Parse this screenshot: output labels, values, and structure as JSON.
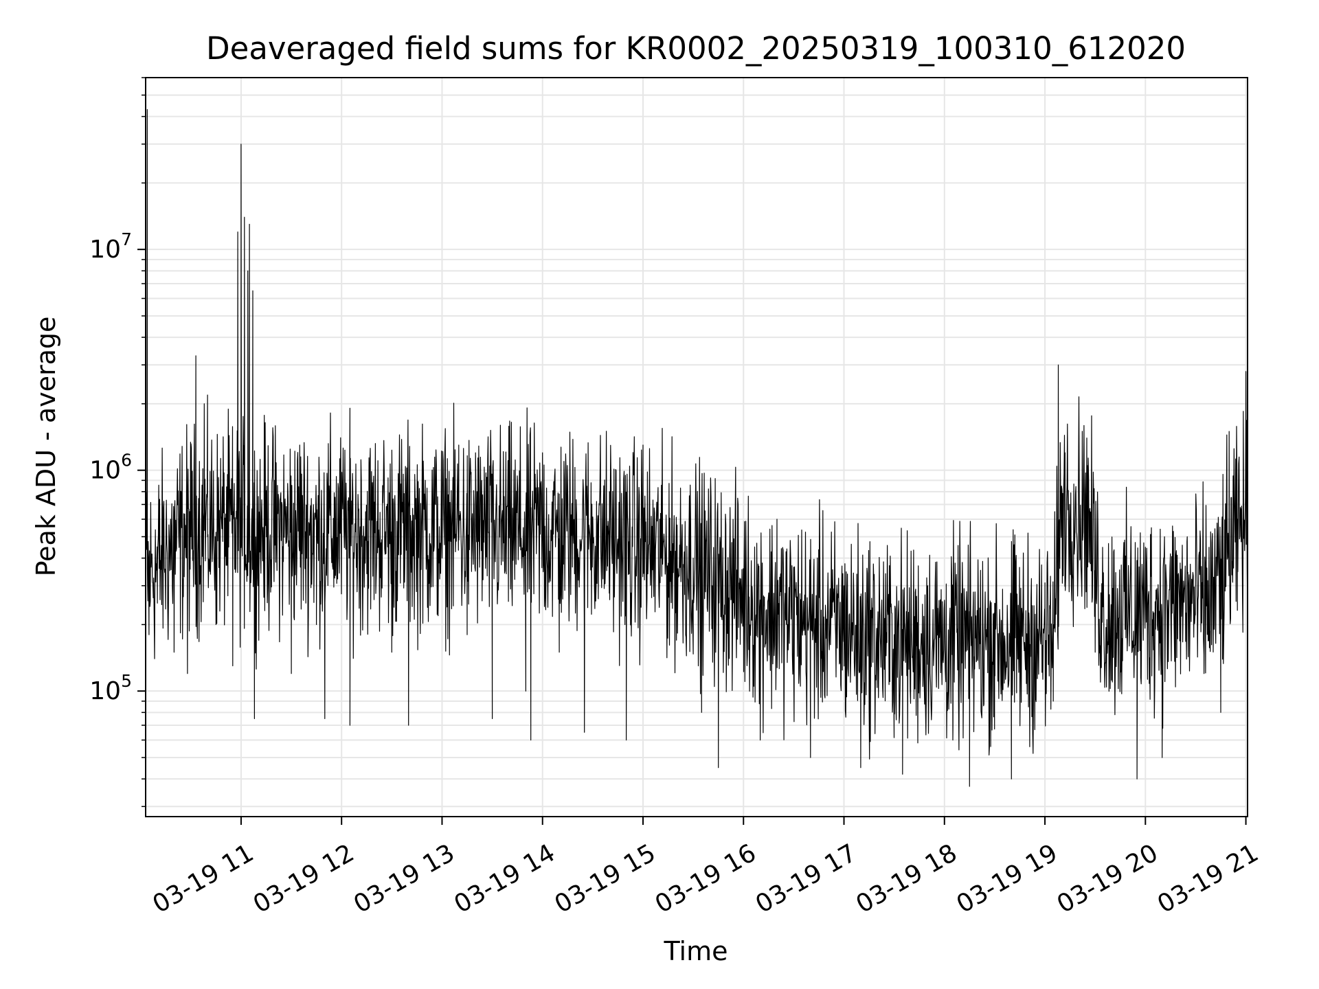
{
  "chart_data": {
    "type": "line",
    "title": "Deaveraged field sums for KR0002_20250319_100310_612020",
    "xlabel": "Time",
    "ylabel": "Peak ADU - average",
    "y_scale": "log",
    "ylim": [
      27000,
      60000000
    ],
    "xlim": [
      "2025-03-19 10:03",
      "2025-03-19 21:01"
    ],
    "x_ticks": [
      "2025-03-19 11:00",
      "2025-03-19 12:00",
      "2025-03-19 13:00",
      "2025-03-19 14:00",
      "2025-03-19 15:00",
      "2025-03-19 16:00",
      "2025-03-19 17:00",
      "2025-03-19 18:00",
      "2025-03-19 19:00",
      "2025-03-19 20:00",
      "2025-03-19 21:00"
    ],
    "x_tick_labels": [
      "03-19 11",
      "03-19 12",
      "03-19 13",
      "03-19 14",
      "03-19 15",
      "03-19 16",
      "03-19 17",
      "03-19 18",
      "03-19 19",
      "03-19 20",
      "03-19 21"
    ],
    "y_ticks": [
      {
        "value": 100000,
        "base": "10",
        "exp": "5"
      },
      {
        "value": 1000000,
        "base": "10",
        "exp": "6"
      },
      {
        "value": 10000000,
        "base": "10",
        "exp": "7"
      }
    ],
    "grid": true,
    "line_color": "#000000",
    "grid_color": "#e6e6e6",
    "series": [
      {
        "values": [
          [
            "2025-03-19 10:03",
            400000
          ],
          [
            "2025-03-19 10:04",
            43000000
          ],
          [
            "2025-03-19 10:05",
            180000
          ],
          [
            "2025-03-19 10:10",
            250000
          ],
          [
            "2025-03-19 10:15",
            400000
          ],
          [
            "2025-03-19 10:20",
            150000
          ],
          [
            "2025-03-19 10:25",
            300000
          ],
          [
            "2025-03-19 10:28",
            120000
          ],
          [
            "2025-03-19 10:30",
            500000
          ],
          [
            "2025-03-19 10:33",
            3300000
          ],
          [
            "2025-03-19 10:35",
            700000
          ],
          [
            "2025-03-19 10:38",
            2000000
          ],
          [
            "2025-03-19 10:40",
            500000
          ],
          [
            "2025-03-19 10:45",
            200000
          ],
          [
            "2025-03-19 10:50",
            600000
          ],
          [
            "2025-03-19 10:55",
            130000
          ],
          [
            "2025-03-19 10:58",
            12000000
          ],
          [
            "2025-03-19 11:00",
            30000000
          ],
          [
            "2025-03-19 11:02",
            14000000
          ],
          [
            "2025-03-19 11:04",
            8000000
          ],
          [
            "2025-03-19 11:05",
            13000000
          ],
          [
            "2025-03-19 11:07",
            6500000
          ],
          [
            "2025-03-19 11:08",
            75000
          ],
          [
            "2025-03-19 11:10",
            300000
          ],
          [
            "2025-03-19 11:20",
            900000
          ],
          [
            "2025-03-19 11:30",
            120000
          ],
          [
            "2025-03-19 11:35",
            1300000
          ],
          [
            "2025-03-19 11:45",
            200000
          ],
          [
            "2025-03-19 11:50",
            75000
          ],
          [
            "2025-03-19 12:00",
            600000
          ],
          [
            "2025-03-19 12:05",
            70000
          ],
          [
            "2025-03-19 12:20",
            800000
          ],
          [
            "2025-03-19 12:30",
            150000
          ],
          [
            "2025-03-19 12:40",
            70000
          ],
          [
            "2025-03-19 12:50",
            900000
          ],
          [
            "2025-03-19 13:00",
            400000
          ],
          [
            "2025-03-19 13:10",
            1300000
          ],
          [
            "2025-03-19 13:15",
            180000
          ],
          [
            "2025-03-19 13:20",
            1200000
          ],
          [
            "2025-03-19 13:30",
            75000
          ],
          [
            "2025-03-19 13:40",
            500000
          ],
          [
            "2025-03-19 13:50",
            100000
          ],
          [
            "2025-03-19 13:53",
            60000
          ],
          [
            "2025-03-19 14:00",
            1200000
          ],
          [
            "2025-03-19 14:10",
            150000
          ],
          [
            "2025-03-19 14:25",
            65000
          ],
          [
            "2025-03-19 14:40",
            800000
          ],
          [
            "2025-03-19 14:50",
            60000
          ],
          [
            "2025-03-19 15:00",
            1300000
          ],
          [
            "2025-03-19 15:10",
            600000
          ],
          [
            "2025-03-19 15:20",
            170000
          ],
          [
            "2025-03-19 15:30",
            400000
          ],
          [
            "2025-03-19 15:35",
            80000
          ],
          [
            "2025-03-19 15:45",
            45000
          ],
          [
            "2025-03-19 16:00",
            250000
          ],
          [
            "2025-03-19 16:10",
            60000
          ],
          [
            "2025-03-19 16:20",
            600000
          ],
          [
            "2025-03-19 16:30",
            120000
          ],
          [
            "2025-03-19 16:40",
            50000
          ],
          [
            "2025-03-19 17:00",
            300000
          ],
          [
            "2025-03-19 17:10",
            45000
          ],
          [
            "2025-03-19 17:30",
            180000
          ],
          [
            "2025-03-19 17:35",
            42000
          ],
          [
            "2025-03-19 17:50",
            300000
          ],
          [
            "2025-03-19 18:05",
            60000
          ],
          [
            "2025-03-19 18:15",
            37000
          ],
          [
            "2025-03-19 18:30",
            250000
          ],
          [
            "2025-03-19 18:40",
            40000
          ],
          [
            "2025-03-19 18:50",
            350000
          ],
          [
            "2025-03-19 19:00",
            200000
          ],
          [
            "2025-03-19 19:05",
            90000
          ],
          [
            "2025-03-19 19:08",
            3000000
          ],
          [
            "2025-03-19 19:12",
            1200000
          ],
          [
            "2025-03-19 19:20",
            500000
          ],
          [
            "2025-03-19 19:25",
            1400000
          ],
          [
            "2025-03-19 19:30",
            150000
          ],
          [
            "2025-03-19 19:40",
            300000
          ],
          [
            "2025-03-19 19:55",
            40000
          ],
          [
            "2025-03-19 20:00",
            300000
          ],
          [
            "2025-03-19 20:10",
            50000
          ],
          [
            "2025-03-19 20:25",
            500000
          ],
          [
            "2025-03-19 20:35",
            120000
          ],
          [
            "2025-03-19 20:45",
            80000
          ],
          [
            "2025-03-19 20:50",
            1500000
          ],
          [
            "2025-03-19 20:55",
            600000
          ],
          [
            "2025-03-19 21:00",
            2800000
          ],
          [
            "2025-03-19 21:01",
            1000000
          ]
        ]
      }
    ]
  }
}
